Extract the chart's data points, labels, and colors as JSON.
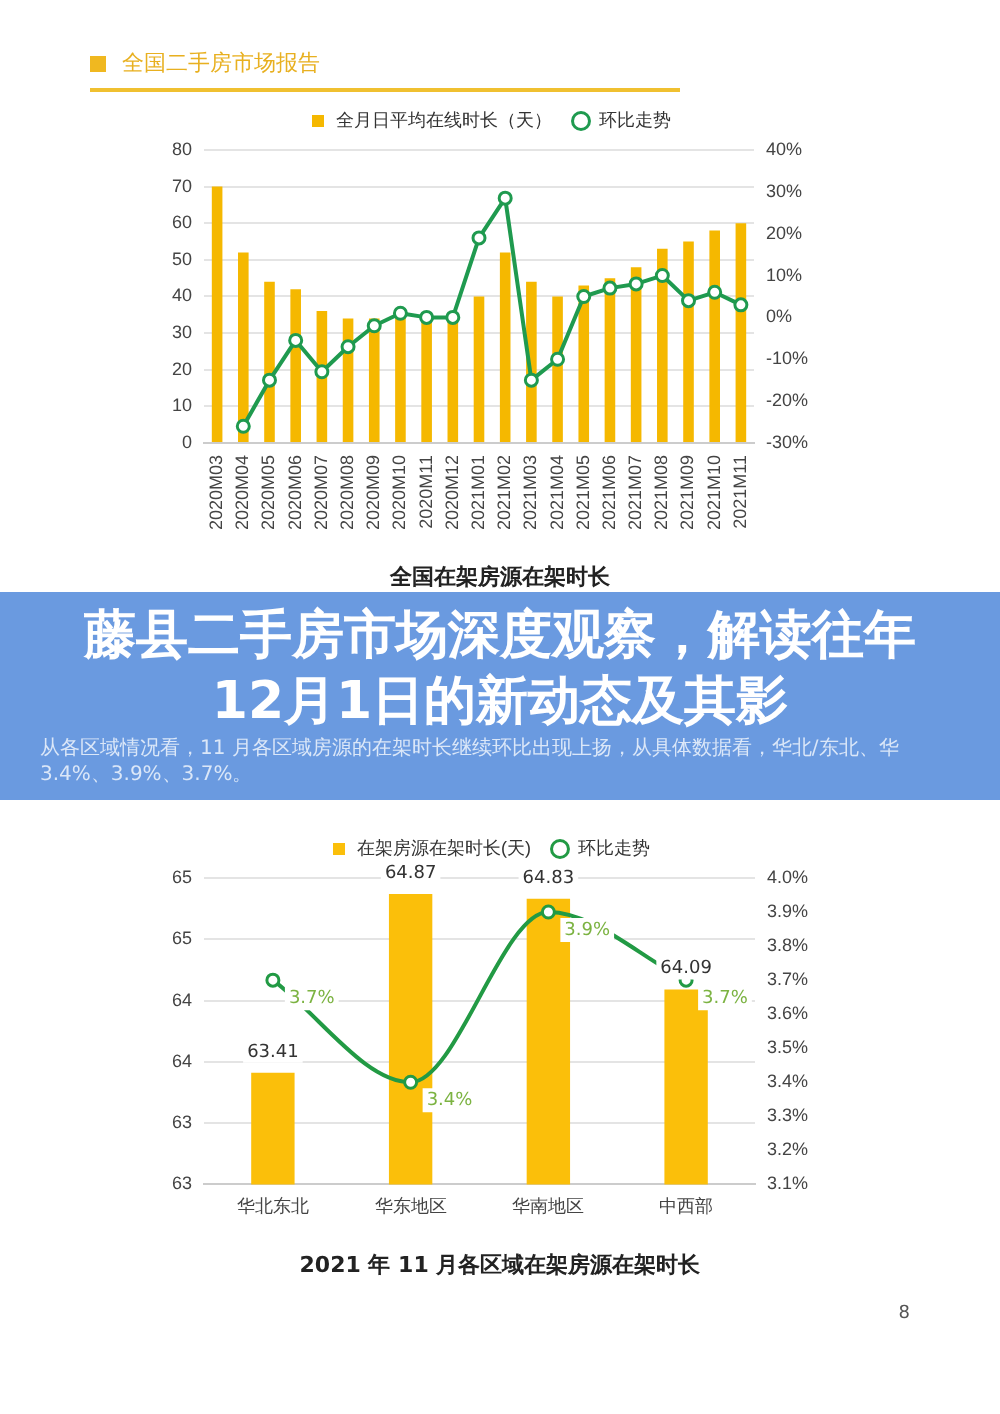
{
  "chart_data": [
    {
      "type": "bar",
      "title": "全国二手房市场报告",
      "categories": [
        "2020M03",
        "2020M04",
        "2020M05",
        "2020M06",
        "2020M07",
        "2020M08",
        "2020M09",
        "2020M10",
        "2020M11",
        "2020M12",
        "2021M01",
        "2021M02",
        "2021M03",
        "2021M04",
        "2021M05",
        "2021M06",
        "2021M07",
        "2021M08",
        "2021M09",
        "2021M10",
        "2021M11"
      ],
      "series": [
        {
          "name": "全月日平均在线时长（天）",
          "type": "bar",
          "color": "#f5b800",
          "values": [
            70,
            52,
            44,
            42,
            36,
            34,
            34,
            35,
            34,
            34,
            40,
            52,
            44,
            40,
            43,
            45,
            48,
            53,
            55,
            58,
            60
          ]
        },
        {
          "name": "环比走势",
          "type": "line",
          "axis": "y2",
          "marker": "circle",
          "color": "#1f9a4f",
          "values": [
            null,
            -26,
            -15,
            -5.5,
            -13,
            -7,
            -2,
            1,
            0,
            0,
            19,
            28.5,
            -15,
            -10,
            5,
            7,
            8,
            10,
            4,
            6,
            3
          ]
        }
      ],
      "ylim": [
        0,
        80
      ],
      "yticks": [
        0,
        10,
        20,
        30,
        40,
        50,
        60,
        70,
        80
      ],
      "y2lim": [
        -30,
        40
      ],
      "y2ticks": [
        {
          "value": -30,
          "label": "-30%"
        },
        {
          "value": -20,
          "label": "-20%"
        },
        {
          "value": -10,
          "label": "-10%"
        },
        {
          "value": 0,
          "label": "0%"
        },
        {
          "value": 10,
          "label": "10%"
        },
        {
          "value": 20,
          "label": "20%"
        },
        {
          "value": 30,
          "label": "30%"
        },
        {
          "value": 40,
          "label": "40%"
        }
      ],
      "grid": "y",
      "legend": "top",
      "annotations": [
        "全国在架房源在架时长"
      ]
    },
    {
      "type": "other",
      "title": "藤县二手房市场深度观察，解读往年12月1日的新动态及其影",
      "annotations": [
        "从各区域情况看，11 月各区域房源的在架时长继续环比出现上扬，从具体数据看，华北/东北、华",
        "3.4%、3.9%、3.7%。"
      ]
    },
    {
      "type": "bar",
      "categories": [
        "华北东北",
        "华东地区",
        "华南地区",
        "中西部"
      ],
      "series": [
        {
          "name": "在架房源在架时长(天)",
          "type": "bar",
          "color": "#fbbf0a",
          "values": [
            63.41,
            64.87,
            64.83,
            64.09
          ],
          "value_labels": [
            "63.41",
            "64.87",
            "64.83",
            "64.09"
          ]
        },
        {
          "name": "环比走势",
          "type": "line",
          "axis": "y2",
          "marker": "circle",
          "color": "#229a44",
          "values": [
            3.7,
            3.4,
            3.9,
            3.7
          ],
          "value_labels": [
            "3.7%",
            "3.4%",
            "3.9%",
            "3.7%"
          ]
        }
      ],
      "ylim": [
        62.5,
        65.0
      ],
      "yticks": [
        {
          "value": 62.5,
          "label": "63"
        },
        {
          "value": 63.0,
          "label": "63"
        },
        {
          "value": 63.5,
          "label": "64"
        },
        {
          "value": 64.0,
          "label": "64"
        },
        {
          "value": 64.5,
          "label": "65"
        },
        {
          "value": 65.0,
          "label": "65"
        }
      ],
      "y2lim": [
        3.1,
        4.0
      ],
      "y2ticks": [
        {
          "value": 3.1,
          "label": "3.1%"
        },
        {
          "value": 3.2,
          "label": "3.2%"
        },
        {
          "value": 3.3,
          "label": "3.3%"
        },
        {
          "value": 3.4,
          "label": "3.4%"
        },
        {
          "value": 3.5,
          "label": "3.5%"
        },
        {
          "value": 3.6,
          "label": "3.6%"
        },
        {
          "value": 3.7,
          "label": "3.7%"
        },
        {
          "value": 3.8,
          "label": "3.8%"
        },
        {
          "value": 3.9,
          "label": "3.9%"
        },
        {
          "value": 4.0,
          "label": "4.0%"
        }
      ],
      "grid": "y",
      "legend": "top",
      "annotations": [
        "2021 年 11 月各区域在架房源在架时长",
        "8"
      ]
    }
  ]
}
